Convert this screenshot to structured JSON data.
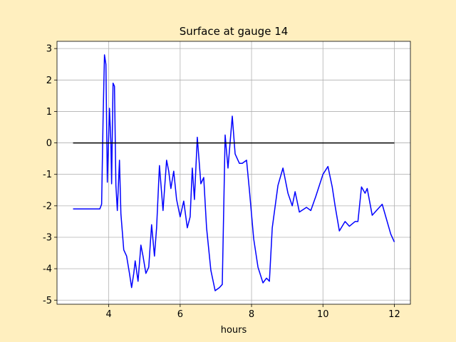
{
  "chart_data": {
    "type": "line",
    "title": "Surface at gauge 14",
    "xlabel": "hours",
    "xlim": [
      2.55,
      12.45
    ],
    "ylim": [
      -5.13,
      3.23
    ],
    "xticks": [
      4,
      6,
      8,
      10,
      12
    ],
    "yticks": [
      -5,
      -4,
      -3,
      -2,
      -1,
      0,
      1,
      2,
      3
    ],
    "grid": true,
    "series": [
      {
        "color": "#0000ff",
        "x": [
          3.0,
          3.55,
          3.75,
          3.8,
          3.84,
          3.88,
          3.92,
          3.96,
          4.02,
          4.06,
          4.08,
          4.12,
          4.16,
          4.2,
          4.24,
          4.3,
          4.34,
          4.42,
          4.5,
          4.58,
          4.64,
          4.7,
          4.74,
          4.82,
          4.9,
          4.96,
          5.04,
          5.12,
          5.2,
          5.28,
          5.34,
          5.42,
          5.52,
          5.62,
          5.68,
          5.74,
          5.82,
          5.9,
          6.0,
          6.1,
          6.2,
          6.28,
          6.34,
          6.4,
          6.48,
          6.58,
          6.66,
          6.74,
          6.86,
          6.98,
          7.1,
          7.18,
          7.26,
          7.34,
          7.46,
          7.54,
          7.66,
          7.74,
          7.86,
          7.94,
          8.06,
          8.18,
          8.32,
          8.42,
          8.5,
          8.58,
          8.74,
          8.88,
          9.02,
          9.14,
          9.22,
          9.34,
          9.54,
          9.66,
          9.8,
          10.0,
          10.14,
          10.26,
          10.34,
          10.46,
          10.62,
          10.74,
          10.9,
          10.98,
          11.08,
          11.18,
          11.24,
          11.38,
          11.54,
          11.66,
          11.9,
          12.0
        ],
        "values": [
          -2.1,
          -2.1,
          -2.1,
          -1.95,
          0.7,
          2.8,
          2.5,
          -1.25,
          1.1,
          0,
          -1.3,
          1.9,
          1.8,
          -1.35,
          -2.15,
          -0.55,
          -2.25,
          -3.4,
          -3.6,
          -4.15,
          -4.6,
          -4.15,
          -3.75,
          -4.4,
          -3.25,
          -3.6,
          -4.15,
          -3.95,
          -2.6,
          -3.6,
          -2.7,
          -0.72,
          -2.15,
          -0.55,
          -0.9,
          -1.45,
          -0.9,
          -1.8,
          -2.35,
          -1.85,
          -2.7,
          -2.35,
          -0.8,
          -1.8,
          0.18,
          -1.3,
          -1.1,
          -2.7,
          -4.05,
          -4.7,
          -4.6,
          -4.5,
          0.25,
          -0.8,
          0.85,
          -0.35,
          -0.65,
          -0.65,
          -0.55,
          -1.5,
          -3.05,
          -3.95,
          -4.45,
          -4.3,
          -4.4,
          -2.7,
          -1.35,
          -0.8,
          -1.6,
          -2.0,
          -1.55,
          -2.2,
          -2.05,
          -2.15,
          -1.7,
          -1.0,
          -0.75,
          -1.4,
          -2.0,
          -2.8,
          -2.5,
          -2.65,
          -2.5,
          -2.5,
          -1.4,
          -1.6,
          -1.45,
          -2.3,
          -2.1,
          -1.95,
          -2.9,
          -3.15
        ]
      },
      {
        "color": "#000000",
        "x": [
          3,
          12
        ],
        "values": [
          0,
          0
        ]
      }
    ]
  }
}
